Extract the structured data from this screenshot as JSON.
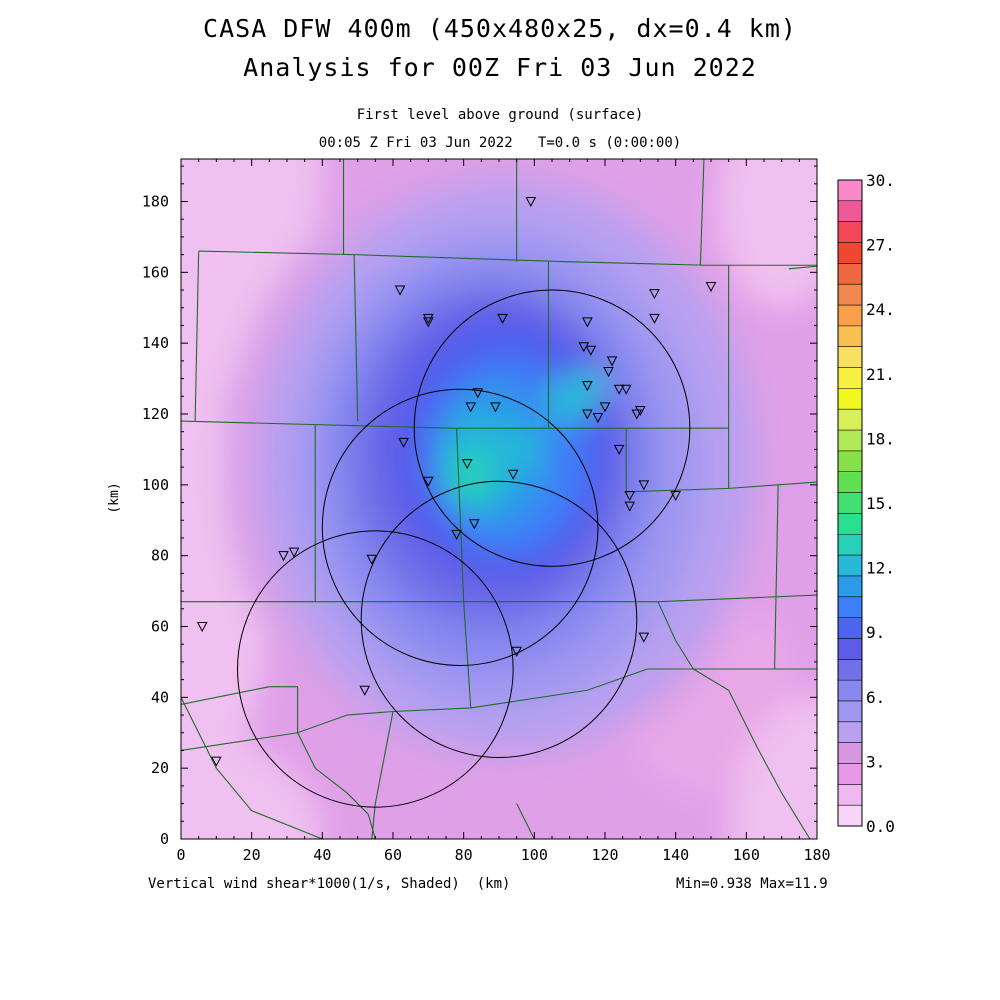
{
  "header": {
    "title_line1": "CASA DFW 400m (450x480x25, dx=0.4 km)",
    "title_line2": "Analysis for 00Z Fri 03 Jun 2022",
    "subtitle_line1": "First level above ground (surface)",
    "subtitle_line2": "00:05 Z Fri 03 Jun 2022   T=0.0 s (0:00:00)"
  },
  "footer": {
    "field_label": "Vertical wind shear*1000(1/s, Shaded)  (km)",
    "minmax": "Min=0.938 Max=11.9"
  },
  "chart_data": {
    "type": "heatmap",
    "title": "Vertical wind shear*1000(1/s, Shaded)",
    "xlabel": "(km)",
    "ylabel": "(km)",
    "xlim": [
      0,
      180
    ],
    "ylim": [
      0,
      192
    ],
    "x_ticks": [
      "0",
      "20",
      "40",
      "60",
      "80",
      "100",
      "120",
      "140",
      "160",
      "180"
    ],
    "y_ticks": [
      "0",
      "20",
      "40",
      "60",
      "80",
      "100",
      "120",
      "140",
      "160",
      "180"
    ],
    "field_min": 0.938,
    "field_max": 11.9,
    "field_peak_location_km": [
      82,
      102
    ],
    "colorbar": {
      "min": 0.0,
      "max": 30.0,
      "labels": [
        "0.0",
        "3.",
        "6.",
        "9.",
        "12.",
        "15.",
        "18.",
        "21.",
        "24.",
        "27.",
        "30."
      ],
      "colors": [
        "#f8d4f8",
        "#f0b8f0",
        "#e898e8",
        "#d898e0",
        "#b8a0f0",
        "#a098f0",
        "#8888f0",
        "#7070e8",
        "#5c5ce8",
        "#4c64f0",
        "#3c80f8",
        "#2c9ce8",
        "#28b8d8",
        "#28d0b8",
        "#28e090",
        "#40e070",
        "#60e050",
        "#88e048",
        "#b0e858",
        "#d8f058",
        "#f0f820",
        "#f8f040",
        "#f8e060",
        "#f8c050",
        "#f8a048",
        "#f08850",
        "#f06840",
        "#f04830",
        "#f04858",
        "#f05898",
        "#f888c8"
      ]
    },
    "radar_rings_km": [
      {
        "center": [
          105,
          116
        ],
        "radius": 39
      },
      {
        "center": [
          79,
          88
        ],
        "radius": 39
      },
      {
        "center": [
          90,
          62
        ],
        "radius": 39
      },
      {
        "center": [
          55,
          48
        ],
        "radius": 39
      }
    ],
    "stations_km": [
      [
        99,
        180
      ],
      [
        62,
        155
      ],
      [
        70,
        147
      ],
      [
        70,
        146
      ],
      [
        91,
        147
      ],
      [
        134,
        154
      ],
      [
        134,
        147
      ],
      [
        150,
        156
      ],
      [
        115,
        146
      ],
      [
        114,
        139
      ],
      [
        116,
        138
      ],
      [
        122,
        135
      ],
      [
        121,
        132
      ],
      [
        115,
        128
      ],
      [
        124,
        127
      ],
      [
        126,
        127
      ],
      [
        84,
        126
      ],
      [
        82,
        122
      ],
      [
        89,
        122
      ],
      [
        120,
        122
      ],
      [
        130,
        121
      ],
      [
        129,
        120
      ],
      [
        115,
        120
      ],
      [
        118,
        119
      ],
      [
        63,
        112
      ],
      [
        124,
        110
      ],
      [
        81,
        106
      ],
      [
        94,
        103
      ],
      [
        70,
        101
      ],
      [
        131,
        100
      ],
      [
        127,
        97
      ],
      [
        140,
        97
      ],
      [
        127,
        94
      ],
      [
        83,
        89
      ],
      [
        78,
        86
      ],
      [
        29,
        80
      ],
      [
        32,
        81
      ],
      [
        54,
        79
      ],
      [
        6,
        60
      ],
      [
        95,
        53
      ],
      [
        131,
        57
      ],
      [
        52,
        42
      ],
      [
        10,
        22
      ]
    ],
    "outside_region_labels": []
  },
  "colors": {
    "boundary_line": "#1f6b2a",
    "ring_line": "#000000"
  }
}
